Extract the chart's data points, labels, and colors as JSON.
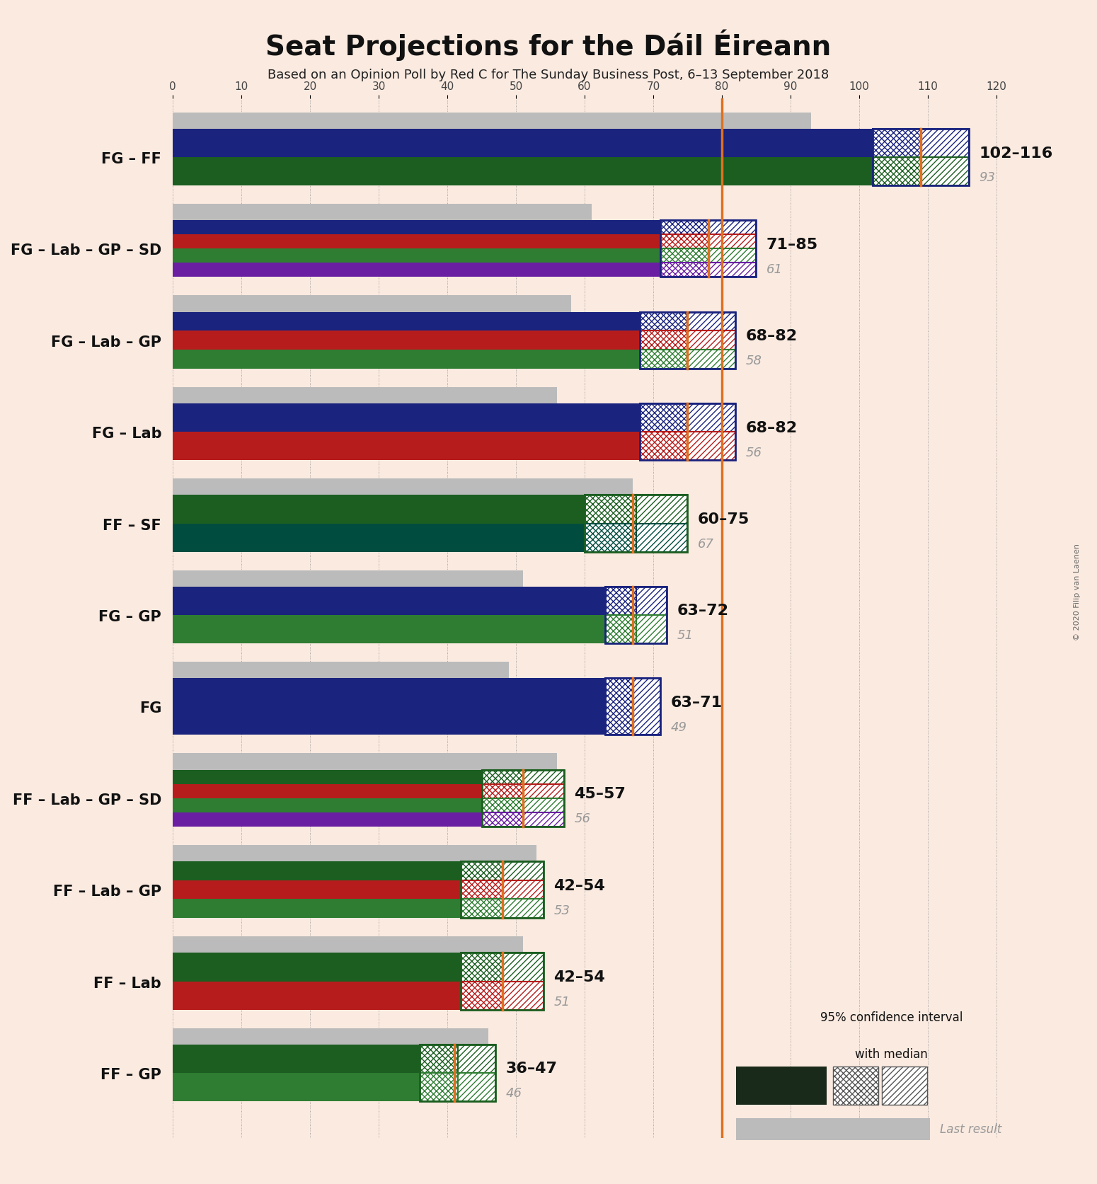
{
  "title": "Seat Projections for the Dáil Éireann",
  "subtitle": "Based on an Opinion Poll by Red C for The Sunday Business Post, 6–13 September 2018",
  "copyright": "© 2020 Filip van Laenen",
  "background_color": "#faeae0",
  "majority_line": 80,
  "coalitions": [
    {
      "label": "FG – FF",
      "range_low": 102,
      "range_high": 116,
      "median": 109,
      "last_result": 93,
      "parties": [
        "FG",
        "FF"
      ]
    },
    {
      "label": "FG – Lab – GP – SD",
      "range_low": 71,
      "range_high": 85,
      "median": 78,
      "last_result": 61,
      "parties": [
        "FG",
        "Lab",
        "GP",
        "SD"
      ]
    },
    {
      "label": "FG – Lab – GP",
      "range_low": 68,
      "range_high": 82,
      "median": 75,
      "last_result": 58,
      "parties": [
        "FG",
        "Lab",
        "GP"
      ]
    },
    {
      "label": "FG – Lab",
      "range_low": 68,
      "range_high": 82,
      "median": 75,
      "last_result": 56,
      "parties": [
        "FG",
        "Lab"
      ]
    },
    {
      "label": "FF – SF",
      "range_low": 60,
      "range_high": 75,
      "median": 67,
      "last_result": 67,
      "parties": [
        "FF",
        "SF"
      ]
    },
    {
      "label": "FG – GP",
      "range_low": 63,
      "range_high": 72,
      "median": 67,
      "last_result": 51,
      "parties": [
        "FG",
        "GP"
      ]
    },
    {
      "label": "FG",
      "range_low": 63,
      "range_high": 71,
      "median": 67,
      "last_result": 49,
      "parties": [
        "FG"
      ]
    },
    {
      "label": "FF – Lab – GP – SD",
      "range_low": 45,
      "range_high": 57,
      "median": 51,
      "last_result": 56,
      "parties": [
        "FF",
        "Lab",
        "GP",
        "SD"
      ]
    },
    {
      "label": "FF – Lab – GP",
      "range_low": 42,
      "range_high": 54,
      "median": 48,
      "last_result": 53,
      "parties": [
        "FF",
        "Lab",
        "GP"
      ]
    },
    {
      "label": "FF – Lab",
      "range_low": 42,
      "range_high": 54,
      "median": 48,
      "last_result": 51,
      "parties": [
        "FF",
        "Lab"
      ]
    },
    {
      "label": "FF – GP",
      "range_low": 36,
      "range_high": 47,
      "median": 41,
      "last_result": 46,
      "parties": [
        "FF",
        "GP"
      ]
    }
  ],
  "party_colors": {
    "FG": "#1a237e",
    "FF": "#1b5e20",
    "Lab": "#b71c1c",
    "GP": "#2e7d32",
    "SD": "#6a1fa2",
    "SF": "#004d40"
  },
  "xmax": 125,
  "axis_ticks": [
    0,
    10,
    20,
    30,
    40,
    50,
    60,
    70,
    80,
    90,
    100,
    110,
    120
  ],
  "majority_color": "#e07020",
  "last_result_color": "#bbbbbb",
  "range_label_color": "#111111",
  "last_result_label_color": "#999999"
}
